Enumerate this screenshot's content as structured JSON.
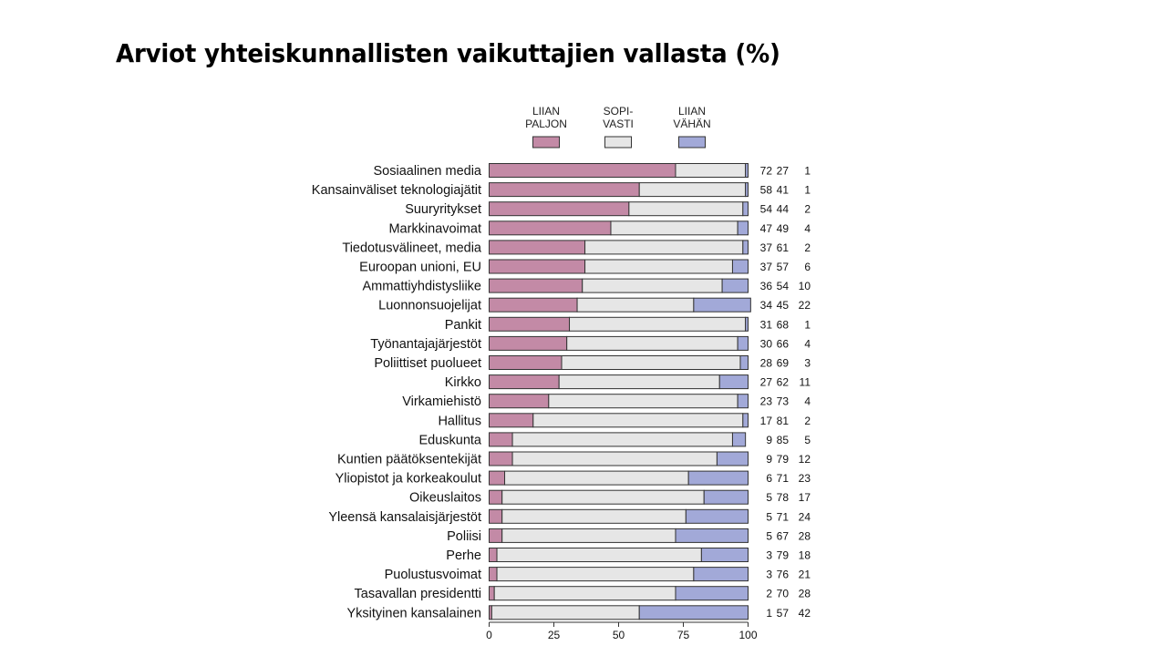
{
  "title": "Arviot yhteiskunnallisten vaikuttajien vallasta (%)",
  "colors": {
    "liian_paljon": "#c38aa6",
    "sopivasti": "#e6e6e6",
    "liian_vahan": "#a2a9d8",
    "stroke": "#333333"
  },
  "chart_data": {
    "type": "bar",
    "orientation": "horizontal",
    "stacked": true,
    "title": "Arviot yhteiskunnallisten vaikuttajien vallasta (%)",
    "xlim": [
      0,
      100
    ],
    "xticks": [
      0,
      25,
      50,
      75,
      100
    ],
    "legend_placement": "top",
    "legend": [
      {
        "lines": [
          "LIIAN",
          "PALJON"
        ],
        "color": "#c38aa6"
      },
      {
        "lines": [
          "SOPI-",
          "VASTI"
        ],
        "color": "#e6e6e6"
      },
      {
        "lines": [
          "LIIAN",
          "VÄHÄN"
        ],
        "color": "#a2a9d8"
      }
    ],
    "categories": [
      "Sosiaalinen media",
      "Kansainväliset teknologiajätit",
      "Suuryritykset",
      "Markkinavoimat",
      "Tiedotusvälineet, media",
      "Euroopan unioni, EU",
      "Ammattiyhdistysliike",
      "Luonnonsuojelijat",
      "Pankit",
      "Työnantajajärjestöt",
      "Poliittiset puolueet",
      "Kirkko",
      "Virkamiehistö",
      "Hallitus",
      "Eduskunta",
      "Kuntien päätöksentekijät",
      "Yliopistot ja korkeakoulut",
      "Oikeuslaitos",
      "Yleensä kansalaisjärjestöt",
      "Poliisi",
      "Perhe",
      "Puolustusvoimat",
      "Tasavallan presidentti",
      "Yksityinen kansalainen"
    ],
    "series": [
      {
        "values": [
          72,
          58,
          54,
          47,
          37,
          37,
          36,
          34,
          31,
          30,
          28,
          27,
          23,
          17,
          9,
          9,
          6,
          5,
          5,
          5,
          3,
          3,
          2,
          1
        ]
      },
      {
        "values": [
          27,
          41,
          44,
          49,
          61,
          57,
          54,
          45,
          68,
          66,
          69,
          62,
          73,
          81,
          85,
          79,
          71,
          78,
          71,
          67,
          79,
          76,
          70,
          57
        ]
      },
      {
        "values": [
          1,
          1,
          2,
          4,
          2,
          6,
          10,
          22,
          1,
          4,
          3,
          11,
          4,
          2,
          5,
          12,
          23,
          17,
          24,
          28,
          18,
          21,
          28,
          42
        ]
      }
    ]
  }
}
